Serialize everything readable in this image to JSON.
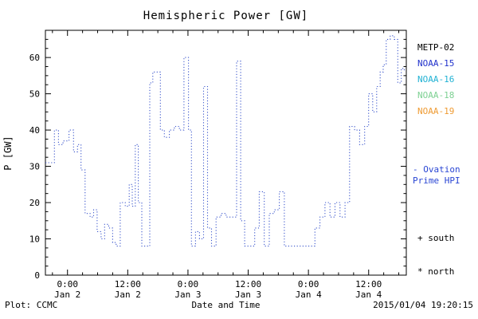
{
  "footer": {
    "left": "Plot: CCMC",
    "right": "2015/01/04 19:20:15"
  },
  "legend": {
    "satellites": [
      {
        "label": "METP-02",
        "color": "#000000"
      },
      {
        "label": "NOAA-15",
        "color": "#2233cc"
      },
      {
        "label": "NOAA-16",
        "color": "#22b2d4"
      },
      {
        "label": "NOAA-18",
        "color": "#7ed193"
      },
      {
        "label": "NOAA-19",
        "color": "#ef9b33"
      }
    ],
    "model": {
      "line1": "- Ovation",
      "line2": "Prime HPI",
      "color": "#2a46d4"
    },
    "markers": [
      {
        "label": "+ south"
      },
      {
        "label": "* north"
      }
    ]
  },
  "chart_data": {
    "type": "line",
    "line_style": "dotted-step",
    "title": "Hemispheric Power [GW]",
    "xlabel": "Date and Time",
    "ylabel": "P [GW]",
    "x_unit": "hours since 2015-01-02 00:00 UT",
    "xlim": [
      -4.4,
      67.5
    ],
    "ylim": [
      0,
      67.5
    ],
    "yticks": [
      0,
      10,
      20,
      30,
      40,
      50,
      60
    ],
    "xticks": [
      {
        "h": 0,
        "time": "0:00",
        "date": "Jan 2"
      },
      {
        "h": 12,
        "time": "12:00",
        "date": "Jan 2"
      },
      {
        "h": 24,
        "time": "0:00",
        "date": "Jan 3"
      },
      {
        "h": 36,
        "time": "12:00",
        "date": "Jan 3"
      },
      {
        "h": 48,
        "time": "0:00",
        "date": "Jan 4"
      },
      {
        "h": 60,
        "time": "12:00",
        "date": "Jan 4"
      }
    ],
    "x_minor_step": 3,
    "y_minor_step": 2.5,
    "series": [
      {
        "name": "Ovation Prime HPI",
        "color": "#3a55cc",
        "points": [
          [
            -4.4,
            31
          ],
          [
            -2.6,
            40
          ],
          [
            -1.8,
            36
          ],
          [
            -0.9,
            37
          ],
          [
            0.3,
            40
          ],
          [
            1.2,
            34
          ],
          [
            2.0,
            36
          ],
          [
            2.7,
            29
          ],
          [
            3.5,
            17
          ],
          [
            4.5,
            16
          ],
          [
            5.2,
            18
          ],
          [
            5.9,
            12
          ],
          [
            6.7,
            10
          ],
          [
            7.4,
            14
          ],
          [
            8.2,
            13
          ],
          [
            9.0,
            9
          ],
          [
            9.7,
            8
          ],
          [
            10.5,
            20
          ],
          [
            11.5,
            19
          ],
          [
            12.3,
            25
          ],
          [
            12.9,
            19
          ],
          [
            13.5,
            36
          ],
          [
            14.1,
            20
          ],
          [
            14.8,
            8
          ],
          [
            16.0,
            8
          ],
          [
            16.4,
            53
          ],
          [
            17.0,
            56
          ],
          [
            17.9,
            56
          ],
          [
            18.5,
            40
          ],
          [
            19.3,
            38
          ],
          [
            20.3,
            40
          ],
          [
            21.3,
            41
          ],
          [
            22.3,
            40
          ],
          [
            23.2,
            60
          ],
          [
            24.1,
            40
          ],
          [
            24.7,
            8
          ],
          [
            25.5,
            12
          ],
          [
            26.3,
            10
          ],
          [
            27.1,
            52
          ],
          [
            27.9,
            13
          ],
          [
            28.7,
            8
          ],
          [
            29.6,
            16
          ],
          [
            30.6,
            17
          ],
          [
            31.6,
            16
          ],
          [
            32.8,
            16
          ],
          [
            33.7,
            59
          ],
          [
            34.5,
            15
          ],
          [
            35.3,
            8
          ],
          [
            36.5,
            8
          ],
          [
            37.3,
            13
          ],
          [
            38.2,
            23
          ],
          [
            39.2,
            8
          ],
          [
            40.2,
            17
          ],
          [
            41.2,
            18
          ],
          [
            42.2,
            23
          ],
          [
            43.2,
            8
          ],
          [
            45.0,
            8
          ],
          [
            47.0,
            8
          ],
          [
            48.5,
            8
          ],
          [
            49.3,
            13
          ],
          [
            50.3,
            16
          ],
          [
            51.3,
            20
          ],
          [
            52.3,
            16
          ],
          [
            53.3,
            20
          ],
          [
            54.3,
            16
          ],
          [
            55.3,
            20
          ],
          [
            56.2,
            41
          ],
          [
            57.2,
            40
          ],
          [
            58.2,
            36
          ],
          [
            59.2,
            41
          ],
          [
            60.0,
            50
          ],
          [
            60.8,
            45
          ],
          [
            61.6,
            52
          ],
          [
            62.3,
            56
          ],
          [
            62.9,
            58
          ],
          [
            63.5,
            65
          ],
          [
            64.3,
            66
          ],
          [
            65.1,
            65
          ],
          [
            65.8,
            53
          ],
          [
            66.5,
            57
          ],
          [
            67.1,
            56
          ]
        ]
      }
    ]
  }
}
